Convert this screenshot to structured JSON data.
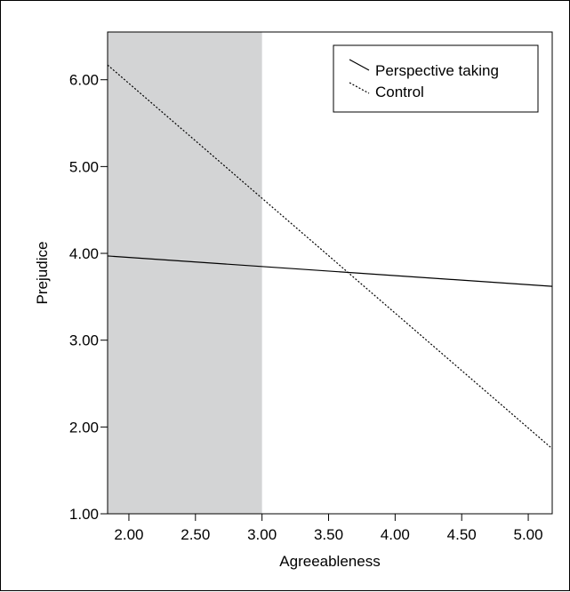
{
  "chart_data": {
    "type": "line",
    "xlabel": "Agreeableness",
    "ylabel": "Prejudice",
    "xlim": [
      1.84,
      5.18
    ],
    "ylim": [
      1.0,
      6.55
    ],
    "x_ticks": [
      2.0,
      2.5,
      3.0,
      3.5,
      4.0,
      4.5,
      5.0
    ],
    "x_tick_labels": [
      "2.00",
      "2.50",
      "3.00",
      "3.50",
      "4.00",
      "4.50",
      "5.00"
    ],
    "y_ticks": [
      1.0,
      2.0,
      3.0,
      4.0,
      5.0,
      6.0
    ],
    "y_tick_labels": [
      "1.00",
      "2.00",
      "3.00",
      "4.00",
      "5.00",
      "6.00"
    ],
    "shaded_region": {
      "x_start": 1.84,
      "x_end": 3.0,
      "color": "#d3d4d5"
    },
    "legend_position": "top-right",
    "grid": false,
    "series": [
      {
        "name": "Perspective taking",
        "style": "solid",
        "x": [
          1.84,
          5.18
        ],
        "y": [
          3.97,
          3.62
        ],
        "color": "#000000"
      },
      {
        "name": "Control",
        "style": "dotted",
        "x": [
          1.84,
          5.18
        ],
        "y": [
          6.17,
          1.75
        ],
        "color": "#000000"
      }
    ]
  }
}
